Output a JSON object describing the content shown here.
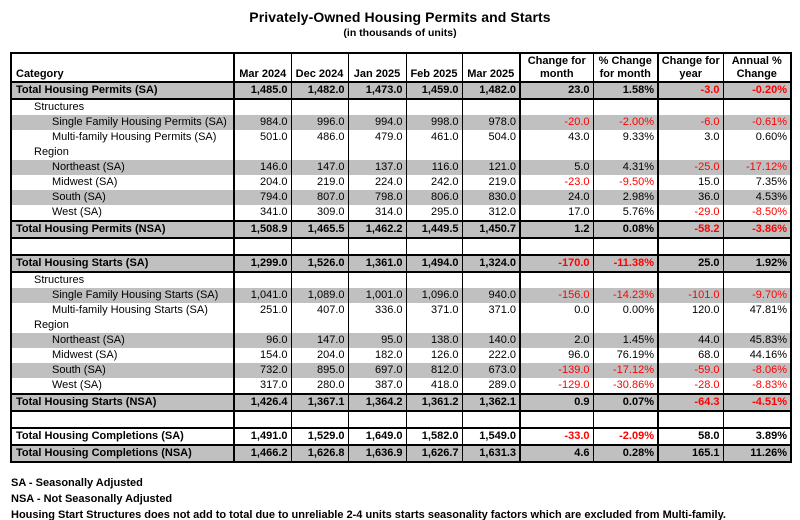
{
  "title": "Privately-Owned Housing Permits and Starts",
  "subtitle": "(in thousands of units)",
  "table": {
    "columns": [
      "Category",
      "Mar 2024",
      "Dec 2024",
      "Jan 2025",
      "Feb 2025",
      "Mar 2025",
      "Change for month",
      "% Change for month",
      "Change for year",
      "Annual % Change"
    ],
    "rows": [
      {
        "category": "Total Housing Permits (SA)",
        "indent": 0,
        "bold": true,
        "shaded": true,
        "total": true,
        "values": [
          "1,485.0",
          "1,482.0",
          "1,473.0",
          "1,459.0",
          "1,482.0",
          "23.0",
          "1.58%",
          "-3.0",
          "-0.20%"
        ]
      },
      {
        "category": "Structures",
        "indent": 1,
        "bold": false,
        "shaded": false,
        "total": false,
        "values": [
          "",
          "",
          "",
          "",
          "",
          "",
          "",
          "",
          ""
        ]
      },
      {
        "category": "Single Family Housing Permits (SA)",
        "indent": 2,
        "bold": false,
        "shaded": true,
        "total": false,
        "values": [
          "984.0",
          "996.0",
          "994.0",
          "998.0",
          "978.0",
          "-20.0",
          "-2.00%",
          "-6.0",
          "-0.61%"
        ]
      },
      {
        "category": "Multi-family Housing Permits (SA)",
        "indent": 2,
        "bold": false,
        "shaded": false,
        "total": false,
        "values": [
          "501.0",
          "486.0",
          "479.0",
          "461.0",
          "504.0",
          "43.0",
          "9.33%",
          "3.0",
          "0.60%"
        ]
      },
      {
        "category": "Region",
        "indent": 1,
        "bold": false,
        "shaded": false,
        "total": false,
        "values": [
          "",
          "",
          "",
          "",
          "",
          "",
          "",
          "",
          ""
        ]
      },
      {
        "category": "Northeast (SA)",
        "indent": 2,
        "bold": false,
        "shaded": true,
        "total": false,
        "values": [
          "146.0",
          "147.0",
          "137.0",
          "116.0",
          "121.0",
          "5.0",
          "4.31%",
          "-25.0",
          "-17.12%"
        ]
      },
      {
        "category": "Midwest (SA)",
        "indent": 2,
        "bold": false,
        "shaded": false,
        "total": false,
        "values": [
          "204.0",
          "219.0",
          "224.0",
          "242.0",
          "219.0",
          "-23.0",
          "-9.50%",
          "15.0",
          "7.35%"
        ]
      },
      {
        "category": "South (SA)",
        "indent": 2,
        "bold": false,
        "shaded": true,
        "total": false,
        "values": [
          "794.0",
          "807.0",
          "798.0",
          "806.0",
          "830.0",
          "24.0",
          "2.98%",
          "36.0",
          "4.53%"
        ]
      },
      {
        "category": "West (SA)",
        "indent": 2,
        "bold": false,
        "shaded": false,
        "total": false,
        "values": [
          "341.0",
          "309.0",
          "314.0",
          "295.0",
          "312.0",
          "17.0",
          "5.76%",
          "-29.0",
          "-8.50%"
        ]
      },
      {
        "category": "Total Housing Permits (NSA)",
        "indent": 0,
        "bold": true,
        "shaded": true,
        "total": true,
        "values": [
          "1,508.9",
          "1,465.5",
          "1,462.2",
          "1,449.5",
          "1,450.7",
          "1.2",
          "0.08%",
          "-58.2",
          "-3.86%"
        ]
      },
      {
        "category": "",
        "indent": 0,
        "bold": false,
        "shaded": false,
        "total": false,
        "values": [
          "",
          "",
          "",
          "",
          "",
          "",
          "",
          "",
          ""
        ]
      },
      {
        "category": "Total Housing Starts (SA)",
        "indent": 0,
        "bold": true,
        "shaded": true,
        "total": true,
        "values": [
          "1,299.0",
          "1,526.0",
          "1,361.0",
          "1,494.0",
          "1,324.0",
          "-170.0",
          "-11.38%",
          "25.0",
          "1.92%"
        ]
      },
      {
        "category": "Structures",
        "indent": 1,
        "bold": false,
        "shaded": false,
        "total": false,
        "values": [
          "",
          "",
          "",
          "",
          "",
          "",
          "",
          "",
          ""
        ]
      },
      {
        "category": "Single Family Housing Starts (SA)",
        "indent": 2,
        "bold": false,
        "shaded": true,
        "total": false,
        "values": [
          "1,041.0",
          "1,089.0",
          "1,001.0",
          "1,096.0",
          "940.0",
          "-156.0",
          "-14.23%",
          "-101.0",
          "-9.70%"
        ]
      },
      {
        "category": "Multi-family Housing Starts (SA)",
        "indent": 2,
        "bold": false,
        "shaded": false,
        "total": false,
        "values": [
          "251.0",
          "407.0",
          "336.0",
          "371.0",
          "371.0",
          "0.0",
          "0.00%",
          "120.0",
          "47.81%"
        ]
      },
      {
        "category": "Region",
        "indent": 1,
        "bold": false,
        "shaded": false,
        "total": false,
        "values": [
          "",
          "",
          "",
          "",
          "",
          "",
          "",
          "",
          ""
        ]
      },
      {
        "category": "Northeast (SA)",
        "indent": 2,
        "bold": false,
        "shaded": true,
        "total": false,
        "values": [
          "96.0",
          "147.0",
          "95.0",
          "138.0",
          "140.0",
          "2.0",
          "1.45%",
          "44.0",
          "45.83%"
        ]
      },
      {
        "category": "Midwest (SA)",
        "indent": 2,
        "bold": false,
        "shaded": false,
        "total": false,
        "values": [
          "154.0",
          "204.0",
          "182.0",
          "126.0",
          "222.0",
          "96.0",
          "76.19%",
          "68.0",
          "44.16%"
        ]
      },
      {
        "category": "South (SA)",
        "indent": 2,
        "bold": false,
        "shaded": true,
        "total": false,
        "values": [
          "732.0",
          "895.0",
          "697.0",
          "812.0",
          "673.0",
          "-139.0",
          "-17.12%",
          "-59.0",
          "-8.06%"
        ]
      },
      {
        "category": "West (SA)",
        "indent": 2,
        "bold": false,
        "shaded": false,
        "total": false,
        "values": [
          "317.0",
          "280.0",
          "387.0",
          "418.0",
          "289.0",
          "-129.0",
          "-30.86%",
          "-28.0",
          "-8.83%"
        ]
      },
      {
        "category": "Total Housing Starts (NSA)",
        "indent": 0,
        "bold": true,
        "shaded": true,
        "total": true,
        "values": [
          "1,426.4",
          "1,367.1",
          "1,364.2",
          "1,361.2",
          "1,362.1",
          "0.9",
          "0.07%",
          "-64.3",
          "-4.51%"
        ]
      },
      {
        "category": "",
        "indent": 0,
        "bold": false,
        "shaded": false,
        "total": false,
        "values": [
          "",
          "",
          "",
          "",
          "",
          "",
          "",
          "",
          ""
        ]
      },
      {
        "category": "Total Housing Completions (SA)",
        "indent": 0,
        "bold": true,
        "shaded": false,
        "total": true,
        "values": [
          "1,491.0",
          "1,529.0",
          "1,649.0",
          "1,582.0",
          "1,549.0",
          "-33.0",
          "-2.09%",
          "58.0",
          "3.89%"
        ]
      },
      {
        "category": "Total Housing Completions (NSA)",
        "indent": 0,
        "bold": true,
        "shaded": true,
        "total": true,
        "values": [
          "1,466.2",
          "1,626.8",
          "1,636.9",
          "1,626.7",
          "1,631.3",
          "4.6",
          "0.28%",
          "165.1",
          "11.26%"
        ]
      }
    ]
  },
  "footnotes": [
    "SA - Seasonally Adjusted",
    "NSA - Not Seasonally Adjusted",
    "Housing Start Structures does not add to total due to unreliable 2-4 units starts seasonality factors which are excluded from Multi-family."
  ],
  "colors": {
    "shaded_row": "#c0c0c0",
    "negative_value": "#ff0000",
    "border": "#000000"
  }
}
